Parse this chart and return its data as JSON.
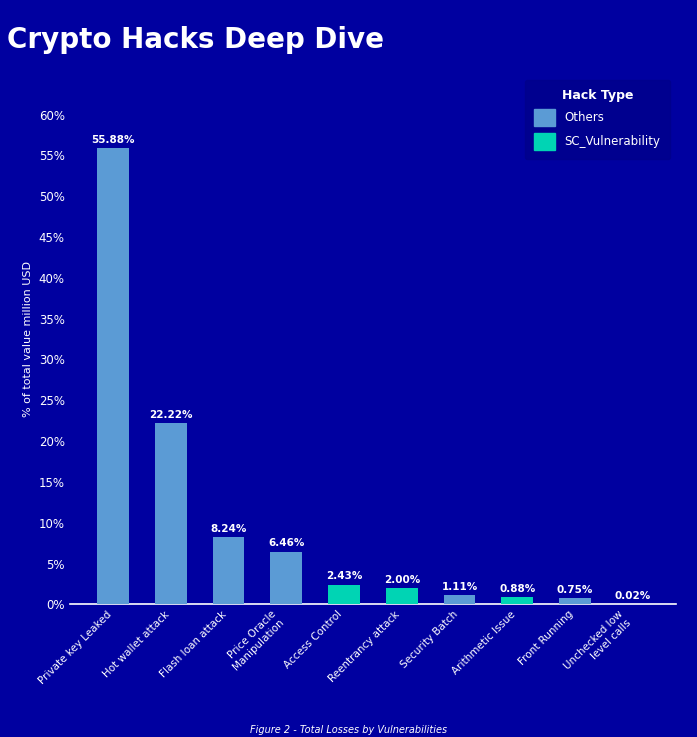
{
  "title": "Crypto Hacks Deep Dive",
  "subtitle": "Figure 2 - Total Losses by Vulnerabilities",
  "ylabel": "% of total value million USD",
  "background_color": "#0000A0",
  "plot_bg_color": "#0000A0",
  "categories": [
    "Private key Leaked",
    "Hot wallet attack",
    "Flash loan attack",
    "Price Oracle\nManipulation",
    "Access Control",
    "Reentrancy attack",
    "Security Batch",
    "Arithmetic Issue",
    "Front Running",
    "Unchecked low\nlevel calls"
  ],
  "values": [
    55.88,
    22.22,
    8.24,
    6.46,
    2.43,
    2.0,
    1.11,
    0.88,
    0.75,
    0.02
  ],
  "labels": [
    "55.88%",
    "22.22%",
    "8.24%",
    "6.46%",
    "2.43%",
    "2.00%",
    "1.11%",
    "0.88%",
    "0.75%",
    "0.02%"
  ],
  "bar_colors": [
    "#5B9BD5",
    "#5B9BD5",
    "#5B9BD5",
    "#5B9BD5",
    "#00D4B4",
    "#00D4B4",
    "#5B9BD5",
    "#00D4B4",
    "#5B9BD5",
    "#5B9BD5"
  ],
  "legend_labels": [
    "Others",
    "SC_Vulnerability"
  ],
  "legend_colors": [
    "#5B9BD5",
    "#00D4B4"
  ],
  "legend_title": "Hack Type",
  "yticks": [
    0,
    5,
    10,
    15,
    20,
    25,
    30,
    35,
    40,
    45,
    50,
    55,
    60
  ],
  "ylim": [
    0,
    65
  ],
  "text_color": "#FFFFFF",
  "title_fontsize": 20,
  "label_fontsize": 7.5,
  "tick_fontsize": 8.5,
  "ylabel_fontsize": 8,
  "legend_bg": "#00008B"
}
